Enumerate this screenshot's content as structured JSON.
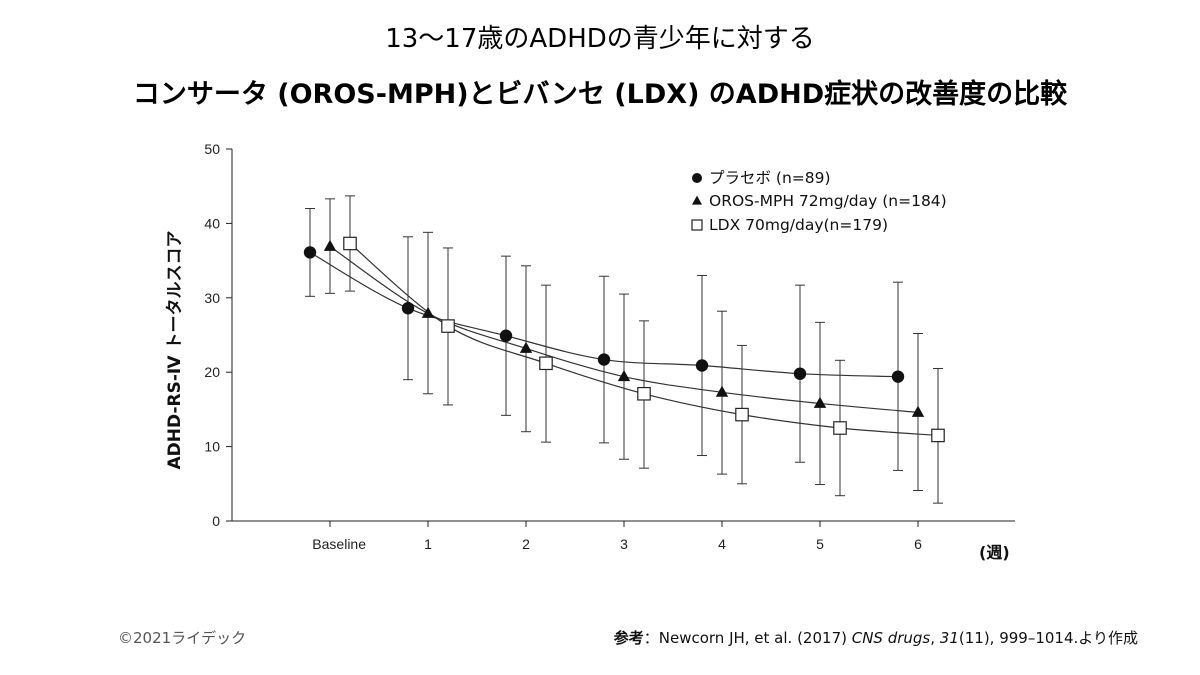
{
  "title_line1": "13〜17歳のADHDの青少年に対する",
  "title_line2": "コンサータ (OROS-MPH)とビバンセ (LDX) のADHD症状の改善度の比較",
  "copyright": "©2021ライデック",
  "reference": {
    "label": "参考",
    "sep": "：",
    "authors": "Newcorn JH, et al. (2017) ",
    "journal": "CNS drugs",
    "comma": ", ",
    "volume": "31",
    "rest": "(11), 999–1014.より作成"
  },
  "chart_data": {
    "type": "line",
    "title": "13〜17歳のADHDの青少年に対する コンサータ (OROS-MPH)とビバンセ (LDX) のADHD症状の改善度の比較",
    "xlabel": "(週)",
    "ylabel": "ADHD-RS-Ⅳ トータルスコア",
    "ylim": [
      0,
      50
    ],
    "yticks": [
      0,
      10,
      20,
      30,
      40,
      50
    ],
    "categories": [
      "Baseline",
      "1",
      "2",
      "3",
      "4",
      "5",
      "6"
    ],
    "legend_position": "top-right",
    "grid": false,
    "series": [
      {
        "name": "プラセボ (n=89)",
        "marker": "circle",
        "values": [
          36.1,
          28.6,
          24.9,
          21.7,
          20.9,
          19.8,
          19.4
        ],
        "err_low": [
          30.2,
          19.0,
          14.2,
          10.5,
          8.8,
          7.9,
          6.8
        ],
        "err_high": [
          42.0,
          38.2,
          35.6,
          32.9,
          33.0,
          31.7,
          32.1
        ]
      },
      {
        "name": "OROS-MPH 72mg/day  (n=184)",
        "marker": "triangle",
        "values": [
          36.9,
          27.9,
          23.2,
          19.4,
          17.3,
          15.8,
          14.6
        ],
        "err_low": [
          30.6,
          17.1,
          12.0,
          8.3,
          6.3,
          4.9,
          4.1
        ],
        "err_high": [
          43.3,
          38.8,
          34.3,
          30.5,
          28.2,
          26.7,
          25.2
        ]
      },
      {
        "name": "LDX  70mg/day(n=179)",
        "marker": "square",
        "values": [
          37.3,
          26.2,
          21.2,
          17.1,
          14.3,
          12.5,
          11.5
        ],
        "err_low": [
          30.9,
          15.6,
          10.6,
          7.1,
          5.0,
          3.4,
          2.4
        ],
        "err_high": [
          43.7,
          36.7,
          31.7,
          26.9,
          23.6,
          21.6,
          20.5
        ]
      }
    ]
  }
}
